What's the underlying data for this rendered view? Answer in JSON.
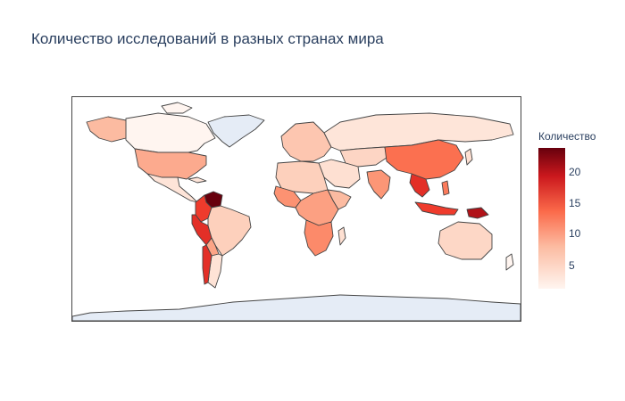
{
  "title": "Количество исследований в разных странах мира",
  "colorbar": {
    "title": "Количество",
    "min": 1,
    "max": 24,
    "ticks": [
      "5",
      "10",
      "15",
      "20"
    ],
    "tick_values": [
      5,
      10,
      15,
      20
    ],
    "colorscale": [
      "#fff5f0",
      "#fcbba1",
      "#fb6a4a",
      "#cb181d",
      "#67000d"
    ]
  },
  "map": {
    "projection": "equirectangular",
    "no_data_color": "#e5ecf6",
    "border_color": "#444444",
    "approximate_values": [
      {
        "region": "Venezuela",
        "value": 24
      },
      {
        "region": "Colombia",
        "value": 19
      },
      {
        "region": "Ecuador",
        "value": 18
      },
      {
        "region": "Peru",
        "value": 17
      },
      {
        "region": "Chile",
        "value": 15
      },
      {
        "region": "Papua New Guinea",
        "value": 21
      },
      {
        "region": "Indonesia",
        "value": 16
      },
      {
        "region": "Philippines",
        "value": 12
      },
      {
        "region": "China",
        "value": 10
      },
      {
        "region": "India",
        "value": 8
      },
      {
        "region": "United States",
        "value": 7
      },
      {
        "region": "Brazil",
        "value": 5
      },
      {
        "region": "Australia",
        "value": 3
      },
      {
        "region": "Kazakhstan",
        "value": 4
      },
      {
        "region": "Russia",
        "value": 2
      },
      {
        "region": "Canada",
        "value": 1
      }
    ]
  }
}
